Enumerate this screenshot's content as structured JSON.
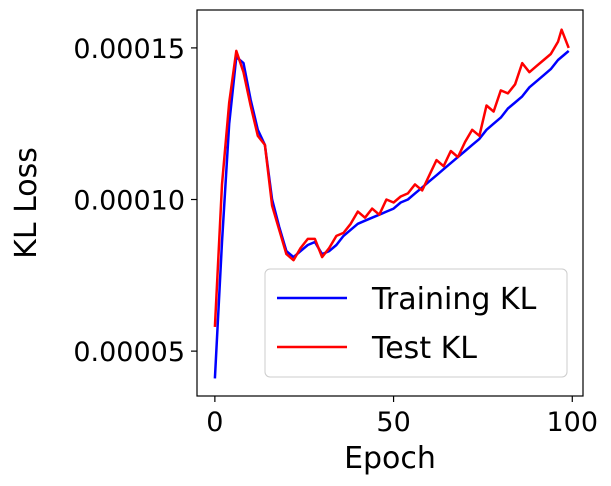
{
  "chart_data": {
    "type": "line",
    "title": "",
    "xlabel": "Epoch",
    "ylabel": "KL Loss",
    "xlim": [
      -5,
      103
    ],
    "ylim": [
      3.52e-05,
      0.0001625
    ],
    "x_ticks": [
      0,
      50,
      100
    ],
    "y_ticks": [
      5e-05,
      0.0001,
      0.00015
    ],
    "y_tick_labels": [
      "0.00005",
      "0.00010",
      "0.00015"
    ],
    "grid": false,
    "legend_position": "lower-right",
    "series": [
      {
        "name": "Training KL",
        "color": "#0000ff",
        "x": [
          0,
          2,
          4,
          6,
          8,
          10,
          12,
          14,
          16,
          18,
          20,
          22,
          24,
          26,
          28,
          30,
          32,
          34,
          36,
          38,
          40,
          42,
          44,
          46,
          48,
          50,
          52,
          54,
          56,
          58,
          60,
          62,
          64,
          66,
          68,
          70,
          72,
          74,
          76,
          78,
          80,
          82,
          84,
          86,
          88,
          90,
          92,
          94,
          96,
          98,
          99
        ],
        "y": [
          4.1e-05,
          8.6e-05,
          0.000125,
          0.000147,
          0.000145,
          0.000133,
          0.000123,
          0.000118,
          0.0001,
          9.1e-05,
          8.3e-05,
          8.1e-05,
          8.3e-05,
          8.5e-05,
          8.6e-05,
          8.2e-05,
          8.3e-05,
          8.5e-05,
          8.8e-05,
          9e-05,
          9.2e-05,
          9.3e-05,
          9.4e-05,
          9.5e-05,
          9.6e-05,
          9.7e-05,
          9.9e-05,
          0.0001,
          0.000102,
          0.000104,
          0.000106,
          0.000108,
          0.00011,
          0.000112,
          0.000114,
          0.000116,
          0.000118,
          0.00012,
          0.000123,
          0.000125,
          0.000127,
          0.00013,
          0.000132,
          0.000134,
          0.000137,
          0.000139,
          0.000141,
          0.000143,
          0.000146,
          0.000148,
          0.000149
        ]
      },
      {
        "name": "Test KL",
        "color": "#ff0000",
        "x": [
          0,
          2,
          4,
          6,
          8,
          10,
          12,
          14,
          16,
          18,
          20,
          22,
          24,
          26,
          28,
          30,
          32,
          34,
          36,
          38,
          40,
          42,
          44,
          46,
          48,
          50,
          52,
          54,
          56,
          58,
          60,
          62,
          64,
          66,
          68,
          70,
          72,
          74,
          76,
          78,
          80,
          82,
          84,
          86,
          88,
          90,
          92,
          94,
          96,
          97,
          99
        ],
        "y": [
          5.8e-05,
          0.000105,
          0.000132,
          0.000149,
          0.000142,
          0.000131,
          0.000121,
          0.000118,
          9.8e-05,
          9e-05,
          8.2e-05,
          8e-05,
          8.4e-05,
          8.7e-05,
          8.7e-05,
          8.1e-05,
          8.4e-05,
          8.8e-05,
          8.9e-05,
          9.2e-05,
          9.6e-05,
          9.4e-05,
          9.7e-05,
          9.5e-05,
          0.0001,
          9.9e-05,
          0.000101,
          0.000102,
          0.000105,
          0.000103,
          0.000108,
          0.000113,
          0.000111,
          0.000116,
          0.000114,
          0.000119,
          0.000123,
          0.000121,
          0.000131,
          0.000129,
          0.000136,
          0.000135,
          0.000138,
          0.000145,
          0.000142,
          0.000144,
          0.000146,
          0.000148,
          0.000152,
          0.000156,
          0.00015
        ]
      }
    ]
  }
}
